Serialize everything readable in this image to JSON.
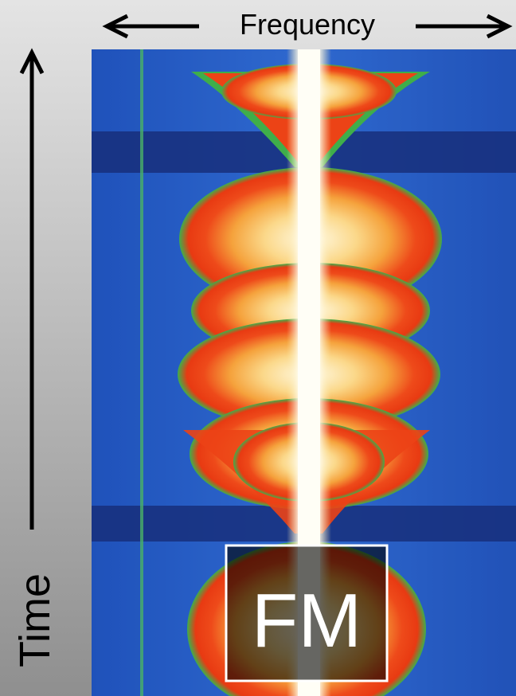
{
  "labels": {
    "x_axis": "Frequency",
    "y_axis": "Time",
    "box": "FM"
  }
}
